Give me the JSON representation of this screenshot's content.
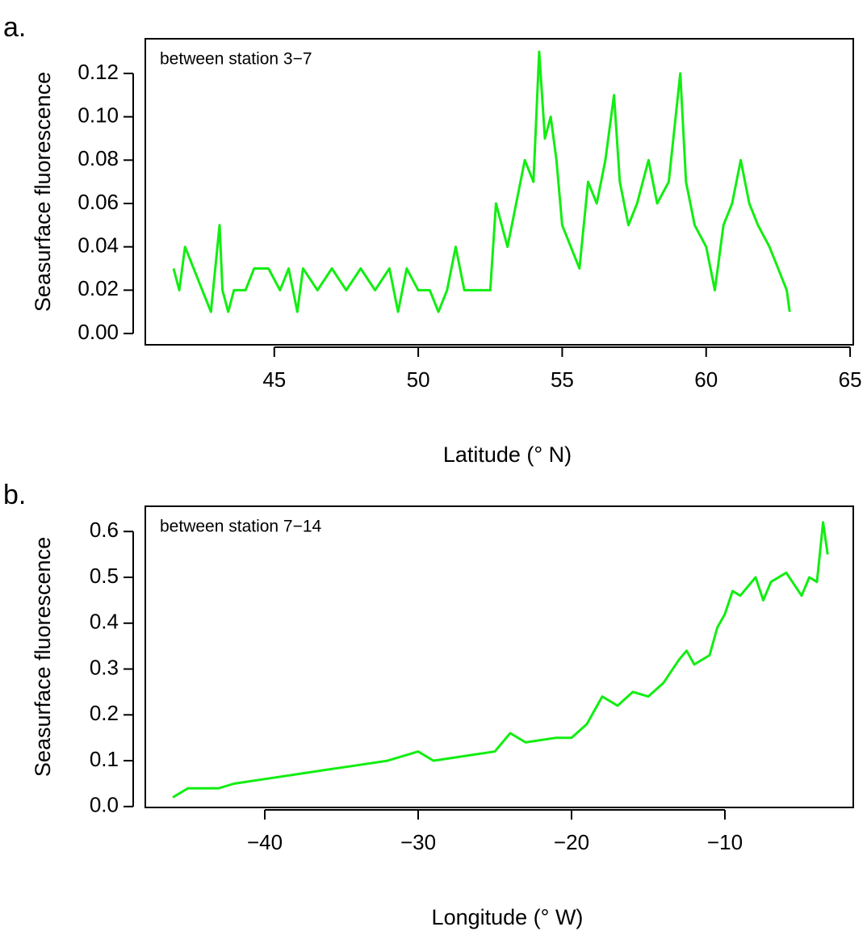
{
  "chart_data": [
    {
      "type": "line",
      "panel_label": "a.",
      "annotation": "between station 3−7",
      "y_label": "Seasurface fluorescence",
      "x_label": "Latitude (° N)",
      "color": "#11ee11",
      "x": [
        41.5,
        41.7,
        41.9,
        42.2,
        42.5,
        42.8,
        43.1,
        43.2,
        43.4,
        43.6,
        44.0,
        44.3,
        44.8,
        45.2,
        45.5,
        45.8,
        46.0,
        46.5,
        47.0,
        47.5,
        48.0,
        48.5,
        49.0,
        49.3,
        49.6,
        50.0,
        50.4,
        50.7,
        51.0,
        51.3,
        51.6,
        52.0,
        52.5,
        52.7,
        52.9,
        53.1,
        53.4,
        53.7,
        54.0,
        54.2,
        54.4,
        54.6,
        54.8,
        55.0,
        55.3,
        55.6,
        55.9,
        56.2,
        56.5,
        56.8,
        57.0,
        57.3,
        57.6,
        58.0,
        58.3,
        58.7,
        59.1,
        59.3,
        59.6,
        60.0,
        60.3,
        60.6,
        60.9,
        61.2,
        61.5,
        61.8,
        62.2,
        62.5,
        62.8,
        62.9
      ],
      "values": [
        0.03,
        0.02,
        0.04,
        0.03,
        0.02,
        0.01,
        0.05,
        0.02,
        0.01,
        0.02,
        0.02,
        0.03,
        0.03,
        0.02,
        0.03,
        0.01,
        0.03,
        0.02,
        0.03,
        0.02,
        0.03,
        0.02,
        0.03,
        0.01,
        0.03,
        0.02,
        0.02,
        0.01,
        0.02,
        0.04,
        0.02,
        0.02,
        0.02,
        0.06,
        0.05,
        0.04,
        0.06,
        0.08,
        0.07,
        0.13,
        0.09,
        0.1,
        0.08,
        0.05,
        0.04,
        0.03,
        0.07,
        0.06,
        0.08,
        0.11,
        0.07,
        0.05,
        0.06,
        0.08,
        0.06,
        0.07,
        0.12,
        0.07,
        0.05,
        0.04,
        0.02,
        0.05,
        0.06,
        0.08,
        0.06,
        0.05,
        0.04,
        0.03,
        0.02,
        0.01
      ],
      "xlim": [
        40.52,
        65.11
      ],
      "ylim": [
        -0.0052,
        0.136
      ],
      "xticks": [
        45,
        50,
        55,
        60,
        65
      ],
      "yticks": [
        {
          "value": 0,
          "label": "0.00"
        },
        0.02,
        0.04,
        0.06,
        0.08,
        {
          "value": 0.1,
          "label": "0.10"
        },
        0.12
      ]
    },
    {
      "type": "line",
      "panel_label": "b.",
      "annotation": "between station 7−14",
      "y_label": "Seasurface fluorescence",
      "x_label": "Longitude (° W)",
      "color": "#11ee11",
      "x": [
        -46,
        -45,
        -43,
        -42,
        -40,
        -38,
        -36,
        -34,
        -32,
        -30,
        -29,
        -27,
        -25,
        -24,
        -23,
        -21,
        -20,
        -19,
        -18,
        -17,
        -16,
        -15,
        -14,
        -13,
        -12.5,
        -12,
        -11,
        -10.5,
        -10,
        -9.5,
        -9,
        -8,
        -7.5,
        -7,
        -6,
        -5,
        -4.5,
        -4,
        -3.6,
        -3.3
      ],
      "values": [
        0.02,
        0.04,
        0.04,
        0.05,
        0.06,
        0.07,
        0.08,
        0.09,
        0.1,
        0.12,
        0.1,
        0.11,
        0.12,
        0.16,
        0.14,
        0.15,
        0.15,
        0.18,
        0.24,
        0.22,
        0.25,
        0.24,
        0.27,
        0.32,
        0.34,
        0.31,
        0.33,
        0.39,
        0.42,
        0.47,
        0.46,
        0.5,
        0.45,
        0.49,
        0.51,
        0.46,
        0.5,
        0.49,
        0.62,
        0.55
      ],
      "xlim": [
        -47.79,
        -1.63
      ],
      "ylim": [
        -0.002,
        0.655
      ],
      "xticks": [
        {
          "value": -40,
          "label": "−40"
        },
        {
          "value": -30,
          "label": "−30"
        },
        {
          "value": -20,
          "label": "−20"
        },
        {
          "value": -10,
          "label": "−10"
        }
      ],
      "yticks": [
        {
          "value": 0,
          "label": "0.0"
        },
        0.1,
        0.2,
        0.3,
        0.4,
        0.5,
        0.6
      ]
    }
  ]
}
